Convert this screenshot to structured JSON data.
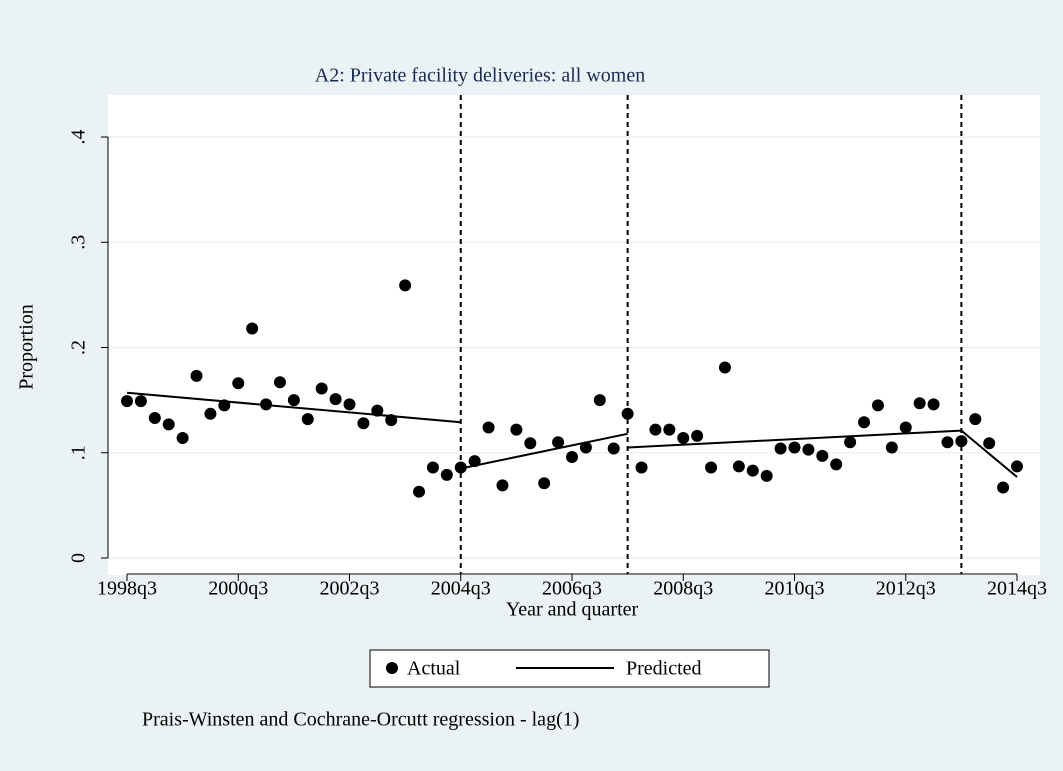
{
  "chart_data": {
    "type": "scatter",
    "title": "A2: Private facility deliveries: all women",
    "xlabel": "Year and quarter",
    "ylabel": "Proportion",
    "note": "Prais-Winsten and Cochrane-Orcutt regression - lag(1)",
    "xlim": [
      154,
      218
    ],
    "ylim": [
      0,
      0.4
    ],
    "xticks": [
      {
        "value": 154,
        "label": "1998q3"
      },
      {
        "value": 162,
        "label": "2000q3"
      },
      {
        "value": 170,
        "label": "2002q3"
      },
      {
        "value": 178,
        "label": "2004q3"
      },
      {
        "value": 186,
        "label": "2006q3"
      },
      {
        "value": 194,
        "label": "2008q3"
      },
      {
        "value": 202,
        "label": "2010q3"
      },
      {
        "value": 210,
        "label": "2012q3"
      },
      {
        "value": 218,
        "label": "2014q3"
      }
    ],
    "yticks": [
      0,
      {
        "value": 0.1,
        "label": ".1"
      },
      {
        "value": 0.2,
        "label": ".2"
      },
      {
        "value": 0.3,
        "label": ".3"
      },
      {
        "value": 0.4,
        "label": ".4"
      }
    ],
    "xlines": [
      178,
      190,
      214
    ],
    "grid": true,
    "series": [
      {
        "name": "Actual",
        "color": "#000000",
        "x": [
          154,
          155,
          156,
          157,
          158,
          159,
          160,
          161,
          162,
          163,
          164,
          165,
          166,
          167,
          168,
          169,
          170,
          171,
          172,
          173,
          174,
          175,
          176,
          177,
          178,
          179,
          180,
          181,
          182,
          183,
          184,
          185,
          186,
          187,
          188,
          189,
          190,
          191,
          192,
          193,
          194,
          195,
          196,
          197,
          198,
          199,
          200,
          201,
          202,
          203,
          204,
          205,
          206,
          207,
          208,
          209,
          210,
          211,
          212,
          213,
          214,
          215,
          216,
          217,
          218
        ],
        "values": [
          0.149,
          0.149,
          0.133,
          0.127,
          0.114,
          0.173,
          0.137,
          0.145,
          0.166,
          0.218,
          0.146,
          0.167,
          0.15,
          0.132,
          0.161,
          0.151,
          0.146,
          0.128,
          0.14,
          0.131,
          0.259,
          0.063,
          0.086,
          0.079,
          0.086,
          0.092,
          0.124,
          0.069,
          0.122,
          0.109,
          0.071,
          0.11,
          0.096,
          0.105,
          0.15,
          0.104,
          0.137,
          0.086,
          0.122,
          0.122,
          0.114,
          0.116,
          0.086,
          0.181,
          0.087,
          0.083,
          0.078,
          0.104,
          0.105,
          0.103,
          0.097,
          0.089,
          0.11,
          0.129,
          0.145,
          0.105,
          0.124,
          0.147,
          0.146,
          0.11,
          0.111,
          0.132,
          0.109,
          0.067,
          0.087
        ]
      },
      {
        "name": "Predicted",
        "color": "#000000",
        "x": [
          154,
          178,
          null,
          178,
          190,
          null,
          190,
          214,
          null,
          214,
          218
        ],
        "values": [
          0.157,
          0.129,
          null,
          0.085,
          0.118,
          null,
          0.105,
          0.121,
          null,
          0.121,
          0.077
        ]
      }
    ]
  }
}
